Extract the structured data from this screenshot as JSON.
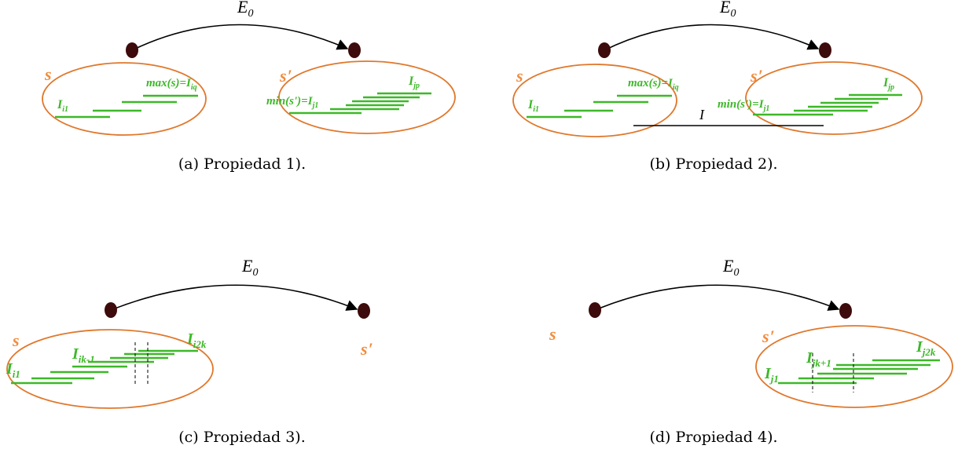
{
  "colors": {
    "node": "#3d0b0b",
    "ellipse": "#e0782c",
    "set_label": "#f28c3c",
    "interval": "#3db828",
    "edge": "#000000"
  },
  "panels": [
    {
      "caption": "(a)  Propiedad 1).",
      "edge_label": "E",
      "edge_label_sub": "0",
      "set_s": "s",
      "set_s_prime": "s",
      "prime": "′",
      "labels": {
        "first": "I",
        "first_sub": "i1",
        "max": "max(s)=I",
        "max_sub": "iq",
        "min": "min(s')=I",
        "min_sub": "j1",
        "last": "I",
        "last_sub": "jp"
      }
    },
    {
      "caption": "(b)  Propiedad 2).",
      "edge_label": "E",
      "edge_label_sub": "0",
      "set_s": "s",
      "set_s_prime": "s",
      "prime": "′",
      "interval_I": "I",
      "labels": {
        "first": "I",
        "first_sub": "i1",
        "max": "max(s)=I",
        "max_sub": "iq",
        "min": "min(s')=I",
        "min_sub": "j1",
        "last": "I",
        "last_sub": "jp"
      }
    },
    {
      "caption": "(c)  Propiedad 3).",
      "edge_label": "E",
      "edge_label_sub": "0",
      "set_s": "s",
      "set_s_prime": "s",
      "prime": "′",
      "labels": {
        "first": "I",
        "first_sub": "i1",
        "mid": "I",
        "mid_sub": "ik-1",
        "last": "I",
        "last_sub": "i2k"
      }
    },
    {
      "caption": "(d)  Propiedad 4).",
      "edge_label": "E",
      "edge_label_sub": "0",
      "set_s": "s",
      "set_s_prime": "s",
      "prime": "′",
      "labels": {
        "first": "I",
        "first_sub": "j1",
        "mid": "I",
        "mid_sub": "jk+1",
        "last": "I",
        "last_sub": "j2k"
      }
    }
  ]
}
